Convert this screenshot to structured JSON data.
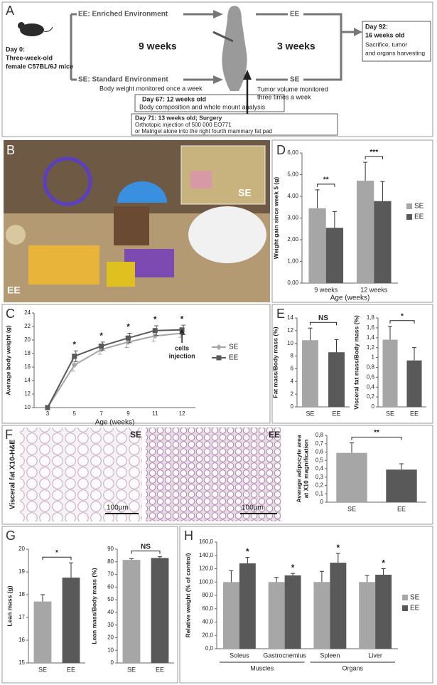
{
  "panel_labels": [
    "A",
    "B",
    "C",
    "D",
    "E",
    "F",
    "G",
    "H"
  ],
  "diagram": {
    "ee_branch": "EE: Enriched Environment",
    "se_branch": "SE: Standard Environment",
    "duration_1": "9 weeks",
    "duration_2": "3 weeks",
    "ee_after": "EE",
    "se_after": "SE",
    "day0": [
      "Day 0:",
      "Three-week-old",
      "female C57BL/6J mice"
    ],
    "weight_note": "Body weight monitored once a week",
    "day67": [
      "Day 67: 12 weeks old",
      "Body composition and whole mount analysis"
    ],
    "day71": [
      "Day 71: 13 weeks old; Surgery",
      "Orthotopic injection of 500 000 EO771",
      "or Matrigel alone into the right fourth mammary fat pad"
    ],
    "tumor_note": [
      "Tumor volume monitored",
      "three times a week"
    ],
    "day92": [
      "Day 92:",
      "16 weeks old",
      "Sacrifice, tumor",
      "and organs harvesting"
    ]
  },
  "photo_b": {
    "inset_label": "SE",
    "main_label": "EE"
  },
  "photo_f": {
    "side_label": "Visceral fat X10-H&E",
    "left_label": "SE",
    "right_label": "EE",
    "scale_left": "100µm",
    "scale_right": "100µm"
  },
  "chart_data": [
    {
      "type": "line",
      "categories": [
        "3",
        "5",
        "7",
        "9",
        "11",
        "12"
      ],
      "xlabel": "Age (weeks)",
      "ylabel": "Average body weight (g)",
      "ylim": [
        10,
        24
      ],
      "yticks": [
        10,
        12,
        14,
        16,
        18,
        20,
        22,
        24
      ],
      "legend": "right",
      "series": [
        {
          "name": "SE",
          "color": "#a6a6a6",
          "marker": "diamond",
          "values": [
            10,
            16.3,
            18.6,
            19.7,
            20.6,
            21.0
          ],
          "errors": [
            null,
            0.9,
            0.7,
            0.8,
            0.8,
            0.6
          ]
        },
        {
          "name": "EE",
          "color": "#595959",
          "marker": "square",
          "values": [
            10,
            17.6,
            19.1,
            20.3,
            21.4,
            21.5
          ],
          "errors": [
            null,
            0.8,
            0.6,
            0.7,
            0.7,
            0.7
          ]
        }
      ],
      "annotations": [
        null,
        "*",
        "*",
        "*",
        "*",
        "*"
      ],
      "note": [
        "cells",
        "injection"
      ]
    },
    {
      "type": "bar",
      "categories": [
        "9 weeks",
        "12 weeks"
      ],
      "xlabel": "Age (weeks)",
      "ylabel": "Weight gain since week 5 (g)",
      "ylim": [
        0,
        6
      ],
      "yticks": [
        {
          "value": 0,
          "label": "0,00"
        },
        {
          "value": 1,
          "label": "1,00"
        },
        {
          "value": 2,
          "label": "2,00"
        },
        {
          "value": 3,
          "label": "3,00"
        },
        {
          "value": 4,
          "label": "4,00"
        },
        {
          "value": 5,
          "label": "5,00"
        },
        {
          "value": 6,
          "label": "6,00"
        }
      ],
      "legend": "right",
      "bracket": true,
      "series": [
        {
          "name": "SE",
          "color": "#a6a6a6",
          "values": [
            3.45,
            4.72
          ],
          "errors": [
            0.85,
            0.85
          ]
        },
        {
          "name": "EE",
          "color": "#595959",
          "values": [
            2.55,
            3.78
          ],
          "errors": [
            0.75,
            0.9
          ]
        }
      ],
      "annotations": [
        "**",
        "***"
      ]
    },
    {
      "type": "bar",
      "categories": [
        "SE",
        "EE"
      ],
      "ylabel": "Fat mass/Body mass (%)",
      "ylim": [
        0,
        14
      ],
      "yticks": [
        0,
        2,
        4,
        6,
        8,
        10,
        12,
        14
      ],
      "values": [
        10.5,
        8.6
      ],
      "errors": [
        1.9,
        2.0
      ],
      "colors": [
        "#a6a6a6",
        "#595959"
      ],
      "annotation": "NS"
    },
    {
      "type": "bar",
      "categories": [
        "SE",
        "EE"
      ],
      "ylabel": "Visceral fat mass/Body mass (%)",
      "ylim": [
        0,
        1.8
      ],
      "yticks": [
        0,
        {
          "value": 0.2,
          "label": "0,2"
        },
        {
          "value": 0.4,
          "label": "0,4"
        },
        {
          "value": 0.6,
          "label": "0,6"
        },
        {
          "value": 0.8,
          "label": "0,8"
        },
        1,
        {
          "value": 1.2,
          "label": "1,2"
        },
        {
          "value": 1.4,
          "label": "1,4"
        },
        {
          "value": 1.6,
          "label": "1,6"
        },
        {
          "value": 1.8,
          "label": "1,8"
        }
      ],
      "values": [
        1.36,
        0.94
      ],
      "errors": [
        0.27,
        0.26
      ],
      "colors": [
        "#a6a6a6",
        "#595959"
      ],
      "annotation": "*"
    },
    {
      "type": "bar",
      "categories": [
        "SE",
        "EE"
      ],
      "ylabel": [
        "Average adipocyte area",
        "at X10 magnification"
      ],
      "ylim": [
        0,
        0.8
      ],
      "yticks": [
        0,
        {
          "value": 0.1,
          "label": "0,1"
        },
        {
          "value": 0.2,
          "label": "0,2"
        },
        {
          "value": 0.3,
          "label": "0,3"
        },
        {
          "value": 0.4,
          "label": "0,4"
        },
        {
          "value": 0.5,
          "label": "0,5"
        },
        {
          "value": 0.6,
          "label": "0,6"
        },
        {
          "value": 0.7,
          "label": "0,7"
        },
        {
          "value": 0.8,
          "label": "0,8"
        }
      ],
      "values": [
        0.59,
        0.39
      ],
      "errors": [
        0.12,
        0.07
      ],
      "colors": [
        "#a6a6a6",
        "#595959"
      ],
      "annotation": "**"
    },
    {
      "type": "bar",
      "categories": [
        "SE",
        "EE"
      ],
      "ylabel": "Lean mass (g)",
      "ylim": [
        15,
        20
      ],
      "yticks": [
        15,
        16,
        17,
        18,
        19,
        20
      ],
      "values": [
        17.7,
        18.75
      ],
      "errors": [
        0.3,
        0.65
      ],
      "colors": [
        "#a6a6a6",
        "#595959"
      ],
      "annotation": "*"
    },
    {
      "type": "bar",
      "categories": [
        "SE",
        "EE"
      ],
      "ylabel": "Lean mass/Body mass (%)",
      "ylim": [
        0,
        90
      ],
      "yticks": [
        0,
        10,
        20,
        30,
        40,
        50,
        60,
        70,
        80,
        90
      ],
      "values": [
        81.5,
        83
      ],
      "errors": [
        1,
        1
      ],
      "colors": [
        "#a6a6a6",
        "#595959"
      ],
      "annotation": "NS"
    },
    {
      "type": "bar",
      "categories": [
        "Soleus",
        "Gastrocnemius",
        "Spleen",
        "Liver"
      ],
      "ylabel": "Relative weight (% of control)",
      "ylim": [
        0,
        160
      ],
      "yticks": [
        {
          "value": 0,
          "label": "0,0"
        },
        {
          "value": 20,
          "label": "20,0"
        },
        {
          "value": 40,
          "label": "40,0"
        },
        {
          "value": 60,
          "label": "60,0"
        },
        {
          "value": 80,
          "label": "80,0"
        },
        {
          "value": 100,
          "label": "100,0"
        },
        {
          "value": 120,
          "label": "120,0"
        },
        {
          "value": 140,
          "label": "140,0"
        },
        {
          "value": 160,
          "label": "160,0"
        }
      ],
      "legend": "right",
      "bracket": false,
      "group_labels": [
        "Muscles",
        "Organs"
      ],
      "series": [
        {
          "name": "SE",
          "color": "#a6a6a6",
          "values": [
            100,
            100,
            100,
            100
          ],
          "errors": [
            17,
            7,
            16,
            10
          ]
        },
        {
          "name": "EE",
          "color": "#595959",
          "values": [
            128,
            110,
            129,
            111
          ],
          "errors": [
            9,
            3,
            14,
            9
          ]
        }
      ],
      "annotations": [
        "*",
        "*",
        "*",
        "*"
      ]
    }
  ]
}
